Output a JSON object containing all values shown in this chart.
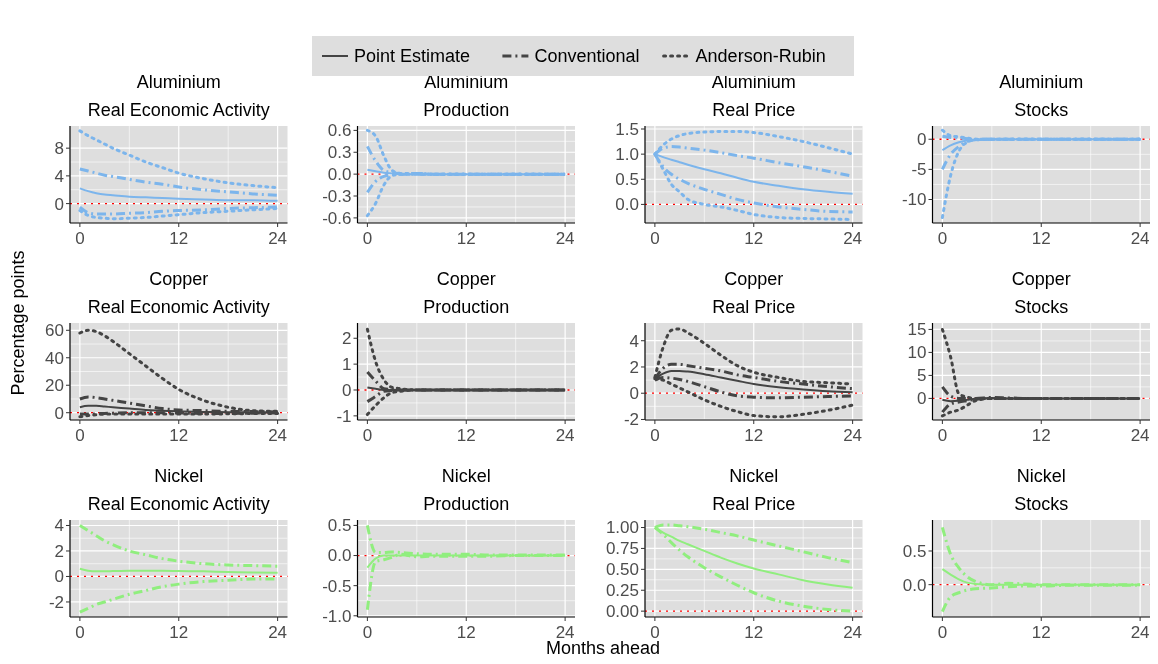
{
  "chart_data": [
    {
      "type": "line",
      "title": "Aluminium",
      "subtitle": "Real Economic Activity",
      "grid": true,
      "x": [
        0,
        1,
        2,
        3,
        4,
        6,
        8,
        10,
        12,
        15,
        18,
        21,
        24
      ],
      "xlim": [
        -1.2,
        25.2
      ],
      "xticks": [
        0,
        12,
        24
      ],
      "ylim": [
        -2.8,
        11.2
      ],
      "yticks": [
        0,
        4,
        8
      ],
      "ref_lines": [
        {
          "axis": "y",
          "value": 0,
          "color": "#ff0000",
          "line_style": "dotted"
        }
      ],
      "series": [
        {
          "color": "#7cb5ec",
          "line_style": "solid",
          "values": [
            2.2,
            1.8,
            1.5,
            1.3,
            1.2,
            1.0,
            0.9,
            0.8,
            0.7,
            0.6,
            0.5,
            0.5,
            0.4
          ]
        },
        {
          "color": "#7cb5ec",
          "line_style": "dashed",
          "values": [
            5,
            4.7,
            4.4,
            4.1,
            3.9,
            3.5,
            3.1,
            2.8,
            2.4,
            2.0,
            1.7,
            1.4,
            1.2
          ]
        },
        {
          "color": "#7cb5ec",
          "line_style": "dashed",
          "values": [
            -0.5,
            -1.3,
            -1.5,
            -1.5,
            -1.5,
            -1.4,
            -1.3,
            -1.1,
            -1.0,
            -0.9,
            -0.7,
            -0.6,
            -0.5
          ]
        },
        {
          "color": "#7cb5ec",
          "line_style": "dotted",
          "values": [
            10.5,
            9.8,
            9.2,
            8.6,
            8.0,
            7.0,
            6.0,
            5.2,
            4.4,
            3.6,
            3.0,
            2.6,
            2.3
          ]
        },
        {
          "color": "#7cb5ec",
          "line_style": "dotted",
          "values": [
            -1,
            -1.7,
            -2,
            -2.1,
            -2.2,
            -2.1,
            -2,
            -1.8,
            -1.6,
            -1.3,
            -1.1,
            -0.9,
            -0.7
          ]
        }
      ]
    },
    {
      "type": "line",
      "title": "Aluminium",
      "subtitle": "Production",
      "grid": true,
      "x": [
        0,
        1,
        2,
        3,
        4,
        6,
        8,
        10,
        12,
        15,
        18,
        21,
        24
      ],
      "xlim": [
        -1.2,
        25.2
      ],
      "xticks": [
        0,
        12,
        24
      ],
      "ylim": [
        -0.67,
        0.66
      ],
      "yticks": [
        -0.6,
        -0.3,
        {
          "value": 0,
          "label": "0.0"
        },
        0.3,
        0.6
      ],
      "ref_lines": [
        {
          "axis": "y",
          "value": 0,
          "color": "#ff0000",
          "line_style": "dotted"
        }
      ],
      "series": [
        {
          "color": "#7cb5ec",
          "line_style": "solid",
          "values": [
            0.06,
            0.04,
            0.02,
            0.01,
            0,
            0,
            0,
            0,
            0,
            0,
            0,
            0,
            0
          ]
        },
        {
          "color": "#7cb5ec",
          "line_style": "dashed",
          "values": [
            0.38,
            0.18,
            0.05,
            0.02,
            0.01,
            0.01,
            0,
            0,
            0,
            0,
            0,
            0,
            0
          ]
        },
        {
          "color": "#7cb5ec",
          "line_style": "dashed",
          "values": [
            -0.25,
            -0.1,
            -0.03,
            -0.01,
            0,
            0,
            0,
            0,
            0,
            0,
            0,
            0,
            0
          ]
        },
        {
          "color": "#7cb5ec",
          "line_style": "dotted",
          "values": [
            0.6,
            0.52,
            0.25,
            0.05,
            0.01,
            0.01,
            0,
            0,
            0,
            0,
            0,
            0,
            0
          ]
        },
        {
          "color": "#7cb5ec",
          "line_style": "dotted",
          "values": [
            -0.57,
            -0.4,
            -0.15,
            -0.02,
            0,
            0,
            0,
            0,
            0,
            0,
            0,
            0,
            0
          ]
        }
      ]
    },
    {
      "type": "line",
      "title": "Aluminium",
      "subtitle": "Real Price",
      "grid": true,
      "x": [
        0,
        1,
        2,
        3,
        4,
        6,
        8,
        10,
        12,
        15,
        18,
        21,
        24
      ],
      "xlim": [
        -1.2,
        25.2
      ],
      "xticks": [
        0,
        12,
        24
      ],
      "ylim": [
        -0.37,
        1.56
      ],
      "yticks": [
        {
          "value": 0,
          "label": "0.0"
        },
        0.5,
        {
          "value": 1,
          "label": "1.0"
        },
        1.5
      ],
      "ref_lines": [
        {
          "axis": "y",
          "value": 0,
          "color": "#ff0000",
          "line_style": "dotted"
        }
      ],
      "series": [
        {
          "color": "#7cb5ec",
          "line_style": "solid",
          "values": [
            1,
            0.94,
            0.89,
            0.84,
            0.79,
            0.7,
            0.62,
            0.53,
            0.45,
            0.37,
            0.3,
            0.25,
            0.21
          ]
        },
        {
          "color": "#7cb5ec",
          "line_style": "dashed",
          "values": [
            1,
            1.12,
            1.15,
            1.14,
            1.12,
            1.08,
            1.03,
            0.97,
            0.92,
            0.83,
            0.75,
            0.66,
            0.56
          ]
        },
        {
          "color": "#7cb5ec",
          "line_style": "dashed",
          "values": [
            1,
            0.75,
            0.6,
            0.5,
            0.42,
            0.3,
            0.2,
            0.1,
            0.03,
            -0.05,
            -0.1,
            -0.14,
            -0.15
          ]
        },
        {
          "color": "#7cb5ec",
          "line_style": "dotted",
          "values": [
            1,
            1.18,
            1.3,
            1.37,
            1.41,
            1.44,
            1.45,
            1.45,
            1.43,
            1.35,
            1.25,
            1.13,
            1.0
          ]
        },
        {
          "color": "#7cb5ec",
          "line_style": "dotted",
          "values": [
            1,
            0.7,
            0.4,
            0.25,
            0.1,
            0,
            -0.05,
            -0.12,
            -0.2,
            -0.26,
            -0.28,
            -0.29,
            -0.3
          ]
        }
      ]
    },
    {
      "type": "line",
      "title": "Aluminium",
      "subtitle": "Stocks",
      "grid": true,
      "x": [
        0,
        1,
        2,
        3,
        4,
        6,
        8,
        10,
        12,
        15,
        18,
        21,
        24
      ],
      "xlim": [
        -1.2,
        25.2
      ],
      "xticks": [
        0,
        12,
        24
      ],
      "ylim": [
        -13.9,
        2.2
      ],
      "yticks": [
        -10,
        -5,
        0
      ],
      "ref_lines": [
        {
          "axis": "y",
          "value": 0,
          "color": "#ff0000",
          "line_style": "dotted"
        }
      ],
      "series": [
        {
          "color": "#7cb5ec",
          "line_style": "solid",
          "values": [
            -1.8,
            -1,
            -0.5,
            -0.2,
            -0.1,
            0,
            0,
            0,
            0,
            0,
            0,
            0,
            0
          ]
        },
        {
          "color": "#7cb5ec",
          "line_style": "dashed",
          "values": [
            0.5,
            0.3,
            0.2,
            0.1,
            0,
            0,
            0,
            0,
            0,
            0,
            0,
            0,
            0
          ]
        },
        {
          "color": "#7cb5ec",
          "line_style": "dashed",
          "values": [
            -5,
            -2.5,
            -1.2,
            -0.4,
            -0.1,
            0,
            0,
            0,
            0,
            0,
            0,
            0,
            0
          ]
        },
        {
          "color": "#7cb5ec",
          "line_style": "dotted",
          "values": [
            1.5,
            0.6,
            0.4,
            0.2,
            0,
            0,
            0,
            0,
            0,
            0,
            0,
            0,
            0
          ]
        },
        {
          "color": "#7cb5ec",
          "line_style": "dotted",
          "values": [
            -13,
            -6,
            -2,
            -0.5,
            -0.1,
            0,
            0,
            0,
            0,
            0,
            0,
            0,
            0
          ]
        }
      ]
    },
    {
      "type": "line",
      "title": "Copper",
      "subtitle": "Real Economic Activity",
      "ylabel": "Percentage points",
      "legend": "top",
      "grid": true,
      "x": [
        0,
        1,
        2,
        3,
        4,
        6,
        8,
        10,
        12,
        15,
        18,
        21,
        24
      ],
      "xlim": [
        -1.2,
        25.2
      ],
      "xticks": [
        0,
        12,
        24
      ],
      "ylim": [
        -5.3,
        65.3
      ],
      "yticks": [
        0,
        20,
        40,
        60
      ],
      "ref_lines": [
        {
          "axis": "y",
          "value": 0,
          "color": "#ff0000",
          "line_style": "dotted"
        }
      ],
      "series": [
        {
          "name": "Point Estimate",
          "color": "#444444",
          "line_style": "solid",
          "values": [
            4,
            5,
            5,
            4.5,
            4,
            3,
            2,
            1.5,
            1,
            0.6,
            0.4,
            0.2,
            0.1
          ]
        },
        {
          "name": "Conventional",
          "color": "#444444",
          "line_style": "dashed",
          "values": [
            10,
            11.5,
            11,
            10,
            9,
            7,
            5,
            3,
            2,
            1.5,
            1,
            0.8,
            0.6
          ]
        },
        {
          "color": "#444444",
          "line_style": "dashed",
          "values": [
            -1,
            -1,
            -0.8,
            -0.5,
            -0.3,
            0,
            0,
            0,
            -0.2,
            -0.5,
            -0.5,
            -0.3,
            -0.2
          ]
        },
        {
          "name": "Anderson-Rubin",
          "color": "#444444",
          "line_style": "dotted",
          "values": [
            58,
            60,
            59,
            56,
            52,
            43,
            34,
            25,
            17,
            9,
            4,
            1.5,
            1
          ]
        },
        {
          "color": "#444444",
          "line_style": "dotted",
          "values": [
            -3,
            -2,
            -1.5,
            -1,
            -1,
            -1,
            -1,
            -1,
            -1,
            -1,
            -0.8,
            -0.6,
            -0.5
          ]
        }
      ]
    },
    {
      "type": "line",
      "title": "Copper",
      "subtitle": "Production",
      "grid": true,
      "x": [
        0,
        1,
        2,
        3,
        4,
        6,
        8,
        10,
        12,
        15,
        18,
        21,
        24
      ],
      "xlim": [
        -1.2,
        25.2
      ],
      "xticks": [
        0,
        12,
        24
      ],
      "ylim": [
        -1.16,
        2.59
      ],
      "yticks": [
        -1,
        0,
        1,
        2
      ],
      "ref_lines": [
        {
          "axis": "y",
          "value": 0,
          "color": "#ff0000",
          "line_style": "dotted"
        }
      ],
      "series": [
        {
          "color": "#444444",
          "line_style": "solid",
          "values": [
            0.1,
            0.05,
            0,
            0,
            0,
            0,
            0,
            0,
            0,
            0,
            0,
            0,
            0
          ]
        },
        {
          "color": "#444444",
          "line_style": "dashed",
          "values": [
            0.7,
            0.35,
            0.05,
            0.02,
            0,
            0,
            0,
            0,
            0,
            0,
            0,
            0,
            0
          ]
        },
        {
          "color": "#444444",
          "line_style": "dashed",
          "values": [
            -0.45,
            -0.25,
            -0.05,
            -0.02,
            0,
            0,
            0,
            0,
            0,
            0,
            0,
            0,
            0
          ]
        },
        {
          "color": "#444444",
          "line_style": "dotted",
          "values": [
            2.35,
            1.1,
            0.4,
            0.1,
            0.05,
            0,
            0,
            0,
            0,
            0,
            0,
            0,
            0
          ]
        },
        {
          "color": "#444444",
          "line_style": "dotted",
          "values": [
            -0.95,
            -0.6,
            -0.3,
            -0.1,
            -0.05,
            0,
            0,
            0,
            0,
            0,
            0,
            0,
            0
          ]
        }
      ]
    },
    {
      "type": "line",
      "title": "Copper",
      "subtitle": "Real Price",
      "grid": true,
      "x": [
        0,
        1,
        2,
        3,
        4,
        6,
        8,
        10,
        12,
        15,
        18,
        21,
        24
      ],
      "xlim": [
        -1.2,
        25.2
      ],
      "xticks": [
        0,
        12,
        24
      ],
      "ylim": [
        -2.04,
        5.35
      ],
      "yticks": [
        -2,
        0,
        2,
        4
      ],
      "ref_lines": [
        {
          "axis": "y",
          "value": 0,
          "color": "#ff0000",
          "line_style": "dotted"
        }
      ],
      "series": [
        {
          "color": "#444444",
          "line_style": "solid",
          "values": [
            1.1,
            1.5,
            1.7,
            1.7,
            1.65,
            1.45,
            1.2,
            0.95,
            0.7,
            0.45,
            0.28,
            0.15,
            0.08
          ]
        },
        {
          "color": "#444444",
          "line_style": "dashed",
          "values": [
            1.1,
            1.9,
            2.2,
            2.2,
            2.1,
            1.9,
            1.7,
            1.4,
            1.2,
            0.9,
            0.7,
            0.5,
            0.35
          ]
        },
        {
          "color": "#444444",
          "line_style": "dashed",
          "values": [
            1.0,
            1.2,
            1.15,
            1.05,
            0.9,
            0.5,
            0.1,
            -0.2,
            -0.3,
            -0.35,
            -0.3,
            -0.25,
            -0.2
          ]
        },
        {
          "color": "#444444",
          "line_style": "dotted",
          "values": [
            1.2,
            3.5,
            4.8,
            4.9,
            4.6,
            3.8,
            2.9,
            2.1,
            1.6,
            1.2,
            0.9,
            0.8,
            0.7
          ]
        },
        {
          "color": "#444444",
          "line_style": "dotted",
          "values": [
            1.1,
            1.0,
            0.7,
            0.4,
            0.1,
            -0.5,
            -1.0,
            -1.4,
            -1.7,
            -1.8,
            -1.6,
            -1.3,
            -0.9
          ]
        }
      ]
    },
    {
      "type": "line",
      "title": "Copper",
      "subtitle": "Stocks",
      "grid": true,
      "x": [
        0,
        1,
        2,
        3,
        4,
        6,
        8,
        10,
        12,
        15,
        18,
        21,
        24
      ],
      "xlim": [
        -1.2,
        25.2
      ],
      "xticks": [
        0,
        12,
        24
      ],
      "ylim": [
        -4.7,
        16.4
      ],
      "yticks": [
        0,
        5,
        10,
        15
      ],
      "ref_lines": [
        {
          "axis": "y",
          "value": 0,
          "color": "#ff0000",
          "line_style": "dotted"
        }
      ],
      "series": [
        {
          "color": "#444444",
          "line_style": "solid",
          "values": [
            -0.3,
            -0.6,
            -0.5,
            -0.3,
            -0.1,
            0.1,
            0,
            0,
            0,
            0,
            0,
            0,
            0
          ]
        },
        {
          "color": "#444444",
          "line_style": "dashed",
          "values": [
            2.5,
            0.5,
            0,
            0,
            0,
            0.2,
            0.1,
            0,
            0,
            0,
            0,
            0,
            0
          ]
        },
        {
          "color": "#444444",
          "line_style": "dashed",
          "values": [
            -3,
            -1.2,
            -0.8,
            -0.5,
            -0.2,
            0,
            0,
            0,
            0,
            0,
            0,
            0,
            0
          ]
        },
        {
          "color": "#444444",
          "line_style": "dotted",
          "values": [
            15,
            9,
            1,
            0.3,
            0,
            0,
            0,
            0,
            0,
            0,
            0,
            0,
            0
          ]
        },
        {
          "color": "#444444",
          "line_style": "dotted",
          "values": [
            -3.8,
            -3,
            -2.5,
            -1.5,
            -0.5,
            0,
            0,
            0,
            0,
            0,
            0,
            0,
            0
          ]
        }
      ]
    },
    {
      "type": "line",
      "title": "Nickel",
      "subtitle": "Real Economic Activity",
      "grid": true,
      "x": [
        0,
        1,
        2,
        3,
        4,
        6,
        8,
        10,
        12,
        15,
        18,
        21,
        24
      ],
      "xlim": [
        -1.2,
        25.2
      ],
      "xticks": [
        0,
        12,
        24
      ],
      "ylim": [
        -3.18,
        4.43
      ],
      "yticks": [
        -2,
        0,
        2,
        4
      ],
      "ref_lines": [
        {
          "axis": "y",
          "value": 0,
          "color": "#ff0000",
          "line_style": "dotted"
        }
      ],
      "series": [
        {
          "color": "#90ee7e",
          "line_style": "solid",
          "values": [
            0.6,
            0.45,
            0.4,
            0.4,
            0.42,
            0.45,
            0.45,
            0.45,
            0.43,
            0.4,
            0.35,
            0.32,
            0.3
          ]
        },
        {
          "color": "#90ee7e",
          "line_style": "dashed",
          "values": [
            4,
            3.6,
            3.2,
            2.8,
            2.5,
            2.0,
            1.7,
            1.4,
            1.2,
            1.0,
            0.9,
            0.85,
            0.8
          ]
        },
        {
          "color": "#90ee7e",
          "line_style": "dashed",
          "values": [
            -2.8,
            -2.5,
            -2.2,
            -2,
            -1.8,
            -1.4,
            -1.1,
            -0.8,
            -0.6,
            -0.4,
            -0.3,
            -0.2,
            -0.2
          ]
        }
      ]
    },
    {
      "type": "line",
      "title": "Nickel",
      "subtitle": "Production",
      "xlabel": "Months ahead",
      "grid": true,
      "x": [
        0,
        1,
        2,
        3,
        4,
        6,
        8,
        10,
        12,
        15,
        18,
        21,
        24
      ],
      "xlim": [
        -1.2,
        25.2
      ],
      "xticks": [
        0,
        12,
        24
      ],
      "ylim": [
        -1.02,
        0.59
      ],
      "yticks": [
        {
          "value": -1,
          "label": "-1.0"
        },
        -0.5,
        {
          "value": 0,
          "label": "0.0"
        },
        0.5
      ],
      "ref_lines": [
        {
          "axis": "y",
          "value": 0,
          "color": "#ff0000",
          "line_style": "dotted"
        }
      ],
      "series": [
        {
          "color": "#90ee7e",
          "line_style": "solid",
          "values": [
            -0.2,
            -0.05,
            0,
            0,
            0,
            0,
            0,
            0,
            0,
            0,
            0,
            0,
            0
          ]
        },
        {
          "color": "#90ee7e",
          "line_style": "dashed",
          "values": [
            0.5,
            0.05,
            0.05,
            0.06,
            0.05,
            0.03,
            0.02,
            0.02,
            0.02,
            0.01,
            0.01,
            0.01,
            0.01
          ]
        },
        {
          "color": "#90ee7e",
          "line_style": "dashed",
          "values": [
            -0.9,
            -0.1,
            -0.07,
            -0.03,
            0.02,
            -0.02,
            -0.01,
            -0.01,
            -0.01,
            -0.01,
            0,
            0,
            0
          ]
        }
      ]
    },
    {
      "type": "line",
      "title": "Nickel",
      "subtitle": "Real Price",
      "grid": true,
      "x": [
        0,
        1,
        2,
        3,
        4,
        6,
        8,
        10,
        12,
        15,
        18,
        21,
        24
      ],
      "xlim": [
        -1.2,
        25.2
      ],
      "xticks": [
        0,
        12,
        24
      ],
      "ylim": [
        -0.07,
        1.09
      ],
      "yticks": [
        {
          "value": 0,
          "label": "0.00"
        },
        0.25,
        {
          "value": 0.5,
          "label": "0.50"
        },
        0.75,
        {
          "value": 1,
          "label": "1.00"
        }
      ],
      "ref_lines": [
        {
          "axis": "y",
          "value": 0,
          "color": "#ff0000",
          "line_style": "dotted"
        }
      ],
      "series": [
        {
          "color": "#90ee7e",
          "line_style": "solid",
          "values": [
            1,
            0.94,
            0.89,
            0.84,
            0.8,
            0.72,
            0.64,
            0.57,
            0.51,
            0.44,
            0.37,
            0.32,
            0.28
          ]
        },
        {
          "color": "#90ee7e",
          "line_style": "dashed",
          "values": [
            1,
            1.03,
            1.03,
            1.02,
            1.01,
            0.98,
            0.94,
            0.9,
            0.85,
            0.78,
            0.71,
            0.64,
            0.58
          ]
        },
        {
          "color": "#90ee7e",
          "line_style": "dashed",
          "values": [
            1,
            0.92,
            0.82,
            0.73,
            0.65,
            0.52,
            0.41,
            0.31,
            0.22,
            0.12,
            0.06,
            0.02,
            0.0
          ]
        }
      ]
    },
    {
      "type": "line",
      "title": "Nickel",
      "subtitle": "Stocks",
      "grid": true,
      "x": [
        0,
        1,
        2,
        3,
        4,
        6,
        8,
        10,
        12,
        15,
        18,
        21,
        24
      ],
      "xlim": [
        -1.2,
        25.2
      ],
      "xticks": [
        0,
        12,
        24
      ],
      "ylim": [
        -0.48,
        0.96
      ],
      "yticks": [
        {
          "value": 0,
          "label": "0.0"
        },
        0.5
      ],
      "ref_lines": [
        {
          "axis": "y",
          "value": 0,
          "color": "#ff0000",
          "line_style": "dotted"
        }
      ],
      "series": [
        {
          "color": "#90ee7e",
          "line_style": "solid",
          "values": [
            0.23,
            0.15,
            0.08,
            0.03,
            0.01,
            0,
            0,
            0,
            0,
            0,
            0,
            0,
            0
          ]
        },
        {
          "color": "#90ee7e",
          "line_style": "dashed",
          "values": [
            0.85,
            0.45,
            0.25,
            0.12,
            0.05,
            0,
            0.02,
            0.01,
            0,
            0,
            0,
            0,
            0
          ]
        },
        {
          "color": "#90ee7e",
          "line_style": "dashed",
          "values": [
            -0.4,
            -0.18,
            -0.12,
            -0.08,
            -0.06,
            -0.05,
            -0.03,
            -0.02,
            -0.02,
            -0.01,
            -0.01,
            -0.01,
            -0.01
          ]
        }
      ]
    }
  ]
}
